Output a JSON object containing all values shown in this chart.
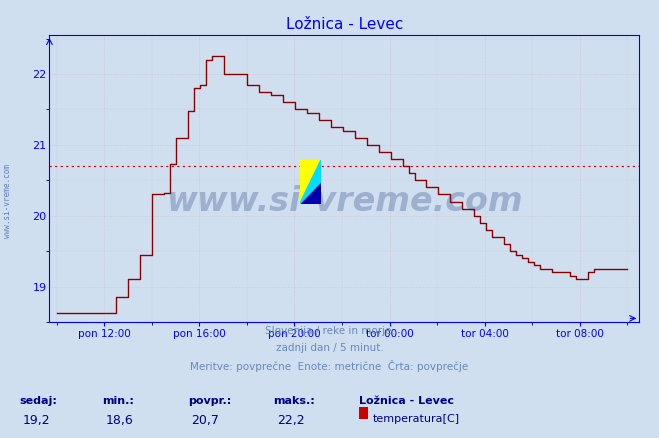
{
  "title": "Ložnica - Levec",
  "bg_color": "#d0dff0",
  "plot_bg_color": "#d0dff0",
  "line_color": "#880000",
  "line_width": 1.0,
  "avg_line_y": 20.7,
  "avg_line_color": "#cc0000",
  "ylim": [
    18.55,
    22.55
  ],
  "yticks": [
    19,
    20,
    21,
    22
  ],
  "x_labels": [
    "pon 12:00",
    "pon 16:00",
    "pon 20:00",
    "tor 00:00",
    "tor 04:00",
    "tor 08:00"
  ],
  "footer_line1": "Slovenija / reke in morje.",
  "footer_line2": "zadnji dan / 5 minut.",
  "footer_line3": "Meritve: povprečne  Enote: metrične  Črta: povprečje",
  "footer_color": "#6688bb",
  "stat_labels": [
    "sedaj:",
    "min.:",
    "povpr.:",
    "maks.:"
  ],
  "stat_values": [
    "19,2",
    "18,6",
    "20,7",
    "22,2"
  ],
  "legend_station": "Ložnica - Levec",
  "legend_label": "temperatura[C]",
  "legend_color": "#cc0000",
  "watermark": "www.si-vreme.com",
  "watermark_color": "#1a3a7a",
  "watermark_alpha": 0.28,
  "side_text": "www.si-vreme.com",
  "side_text_color": "#4466aa",
  "grid_color": "#cc8888",
  "grid_alpha": 0.5
}
